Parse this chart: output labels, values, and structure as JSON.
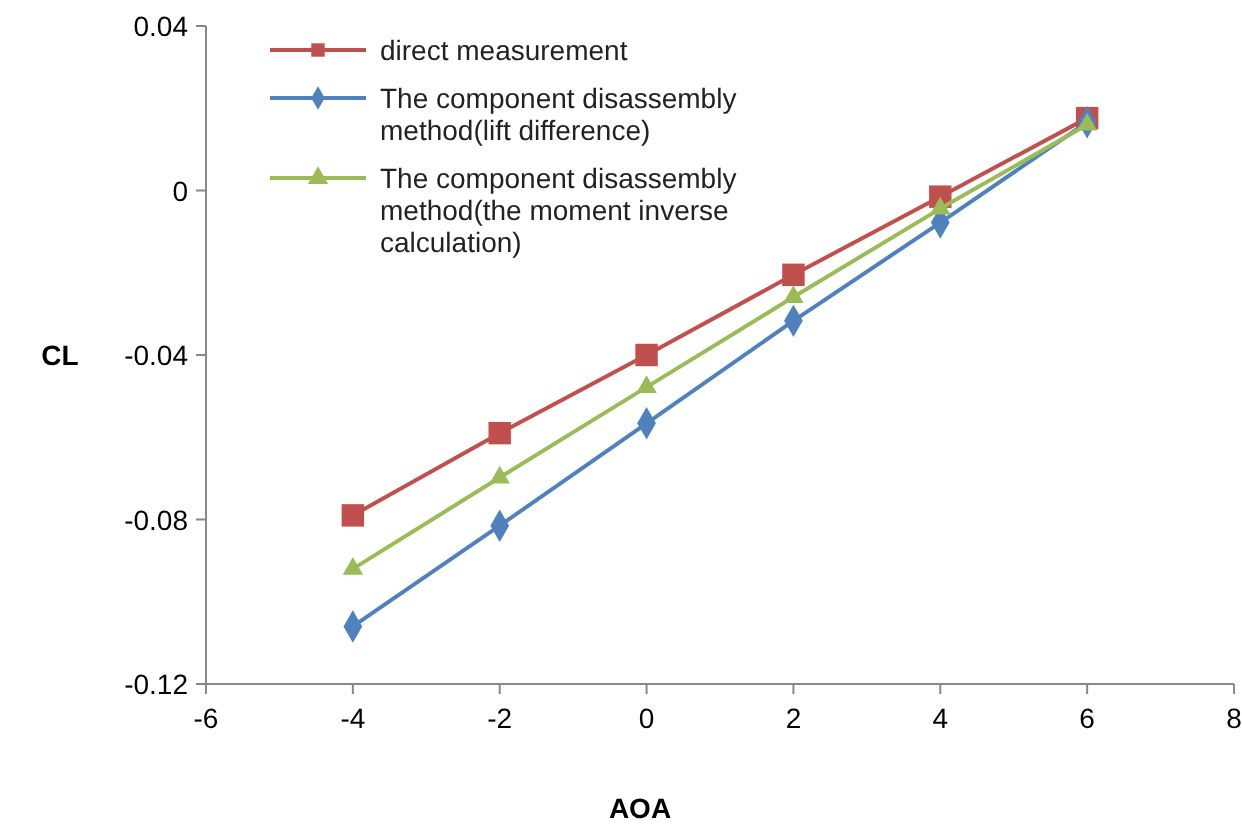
{
  "chart_data": {
    "type": "line",
    "xlabel": "AOA",
    "ylabel": "CL",
    "x": [
      -4,
      -2,
      0,
      2,
      4,
      6
    ],
    "xlim": [
      -6,
      8
    ],
    "xticks": [
      -6,
      -4,
      -2,
      0,
      2,
      4,
      6,
      8
    ],
    "ylim": [
      -0.12,
      0.04
    ],
    "yticks": [
      -0.12,
      -0.08,
      -0.04,
      0,
      0.04
    ],
    "legend": "top left",
    "line_style": "solid",
    "series": [
      {
        "name": "direct measurement",
        "color": "#c0504d",
        "marker": "square",
        "values": [
          -0.079,
          -0.059,
          -0.04,
          -0.0205,
          -0.0015,
          0.0176
        ]
      },
      {
        "name": "The component disassembly method(lift difference)",
        "color": "#4f81bd",
        "marker": "diamond",
        "values": [
          -0.106,
          -0.0815,
          -0.0566,
          -0.0317,
          -0.0078,
          0.0166
        ]
      },
      {
        "name": "The component disassembly method(the moment inverse calculation)",
        "color": "#9bbb59",
        "marker": "triangle",
        "values": [
          -0.092,
          -0.0698,
          -0.0478,
          -0.0259,
          -0.0044,
          0.016
        ]
      }
    ]
  }
}
